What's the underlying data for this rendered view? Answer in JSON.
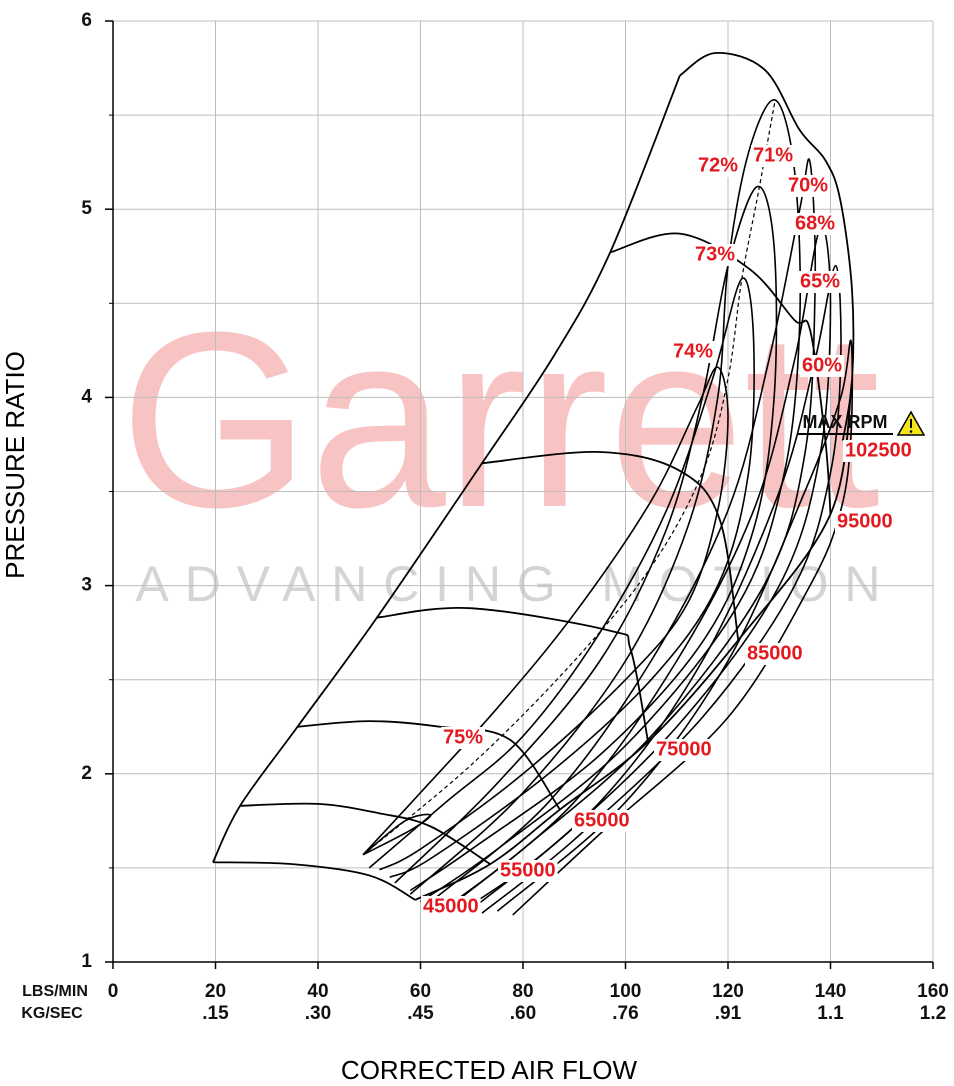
{
  "chart_data": {
    "type": "line",
    "x_label": "CORRECTED AIR FLOW",
    "y_label": "PRESSURE RATIO",
    "xlim": [
      0,
      160
    ],
    "ylim": [
      1,
      6
    ],
    "xticks": [
      0,
      20,
      40,
      60,
      80,
      100,
      120,
      140,
      160
    ],
    "x_row_labels": [
      "LBS/MIN",
      "KG/SEC"
    ],
    "kg_sec_ticks": [
      {
        "value": 20,
        "label": ".15"
      },
      {
        "value": 40,
        "label": ".30"
      },
      {
        "value": 60,
        "label": ".45"
      },
      {
        "value": 80,
        "label": ".60"
      },
      {
        "value": 100,
        "label": ".76"
      },
      {
        "value": 120,
        "label": ".91"
      },
      {
        "value": 140,
        "label": "1.1"
      },
      {
        "value": 160,
        "label": "1.2"
      }
    ],
    "yticks": [
      1,
      2,
      3,
      4,
      5,
      6
    ],
    "minor_yticks": [
      1.5,
      2.5,
      3.5,
      4.5,
      5.5
    ],
    "grid": true,
    "line_color": "#000000",
    "label_color": "#e3191f",
    "watermark": {
      "title": "Garrett",
      "tagline": "ADVANCING MOTION",
      "color": "#f7c3c3",
      "tagline_color": "#d4d4d4"
    },
    "max_rpm": {
      "label": "MAX RPM"
    },
    "series": [
      {
        "name": "45000",
        "x": [
          19.5,
          35,
          50,
          59
        ],
        "y": [
          1.53,
          1.52,
          1.46,
          1.33
        ]
      },
      {
        "name": "55000",
        "x": [
          24.8,
          40,
          52,
          62,
          73.6
        ],
        "y": [
          1.83,
          1.84,
          1.79,
          1.72,
          1.52
        ]
      },
      {
        "name": "65000",
        "x": [
          36,
          50,
          63.8,
          77.5,
          87.2
        ],
        "y": [
          2.25,
          2.28,
          2.25,
          2.18,
          1.81
        ]
      },
      {
        "name": "75000",
        "x": [
          51.5,
          69.7,
          97,
          101,
          104.4
        ],
        "y": [
          2.83,
          2.88,
          2.76,
          2.66,
          2.17
        ]
      },
      {
        "name": "85000",
        "x": [
          72,
          95,
          110.6,
          118.4,
          122
        ],
        "y": [
          3.65,
          3.71,
          3.61,
          3.35,
          2.71
        ]
      },
      {
        "name": "95000",
        "x": [
          97,
          110.6,
          124.3,
          133,
          136,
          139,
          140
        ],
        "y": [
          4.77,
          4.87,
          4.68,
          4.41,
          4.36,
          3.77,
          3.38
        ]
      },
      {
        "name": "102500",
        "x": [
          110.6,
          117.5,
          127.2,
          134,
          139,
          141.9,
          144.2,
          144.2,
          142.4
        ],
        "y": [
          5.71,
          5.83,
          5.74,
          5.42,
          5.26,
          5.05,
          4.57,
          4.09,
          3.77
        ]
      }
    ],
    "surge_line": {
      "x": [
        19.5,
        24.8,
        36,
        51.5,
        72,
        86,
        97,
        110.6
      ],
      "y": [
        1.53,
        1.83,
        2.25,
        2.83,
        3.65,
        4.22,
        4.77,
        5.71
      ]
    },
    "choke_line": {
      "x": [
        59,
        73.6,
        87.2,
        104.4,
        122,
        140,
        144.2
      ],
      "y": [
        1.33,
        1.52,
        1.81,
        2.17,
        2.71,
        3.38,
        4.09
      ]
    },
    "peak_efficiency_line": {
      "x": [
        48.8,
        70,
        90,
        105,
        115,
        120,
        122.7,
        126,
        129.2
      ],
      "y": [
        1.57,
        2.05,
        2.6,
        3.1,
        3.6,
        4.1,
        4.63,
        5.1,
        5.58
      ]
    },
    "efficiency_islands": [
      {
        "label": "75%",
        "x": [
          48.8,
          57,
          62,
          58,
          48.8
        ],
        "y": [
          1.57,
          1.75,
          1.78,
          1.7,
          1.57
        ]
      },
      {
        "label": "74%",
        "x": [
          48.8,
          60,
          75,
          90,
          105,
          114,
          118,
          120,
          118,
          112,
          100,
          80,
          60,
          52
        ],
        "y": [
          1.57,
          1.9,
          2.35,
          2.85,
          3.45,
          3.95,
          4.16,
          3.9,
          3.4,
          2.9,
          2.5,
          2.0,
          1.6,
          1.49
        ]
      },
      {
        "label": "73%",
        "x": [
          50,
          65,
          80,
          95,
          108,
          117,
          122.7,
          125,
          124,
          118,
          105,
          85,
          62,
          54
        ],
        "y": [
          1.5,
          1.85,
          2.2,
          2.75,
          3.4,
          4.1,
          4.63,
          4.3,
          3.6,
          3.0,
          2.5,
          2.0,
          1.55,
          1.45
        ]
      },
      {
        "label": "72%",
        "x": [
          55,
          75,
          95,
          108,
          115,
          120,
          125.7,
          129,
          129,
          125,
          115,
          95,
          70,
          58
        ],
        "y": [
          1.42,
          1.95,
          2.6,
          3.3,
          4.0,
          4.7,
          5.12,
          4.8,
          4.0,
          3.3,
          2.7,
          2.1,
          1.6,
          1.38
        ]
      },
      {
        "label": "71%",
        "x": [
          58,
          80,
          100,
          112,
          118,
          120,
          124,
          129.2,
          133,
          134,
          131,
          122,
          100,
          75,
          60
        ],
        "y": [
          1.36,
          1.9,
          2.6,
          3.3,
          4.0,
          4.7,
          5.3,
          5.58,
          5.2,
          4.4,
          3.6,
          2.9,
          2.15,
          1.6,
          1.32
        ]
      },
      {
        "label": "70%",
        "x": [
          62,
          85,
          105,
          120,
          128,
          134,
          136,
          137,
          135,
          127,
          105,
          80,
          65
        ],
        "y": [
          1.32,
          1.85,
          2.6,
          3.4,
          4.2,
          5.0,
          5.25,
          4.6,
          3.7,
          3.0,
          2.2,
          1.6,
          1.29
        ]
      },
      {
        "label": "68%",
        "x": [
          66,
          90,
          110,
          125,
          133,
          138,
          140,
          138,
          130,
          110,
          85,
          68
        ],
        "y": [
          1.3,
          1.85,
          2.6,
          3.4,
          4.2,
          4.9,
          4.5,
          3.7,
          3.0,
          2.25,
          1.6,
          1.27
        ]
      },
      {
        "label": "65%",
        "x": [
          70,
          95,
          115,
          130,
          137,
          141,
          142,
          140,
          133,
          115,
          90,
          72
        ],
        "y": [
          1.28,
          1.85,
          2.6,
          3.5,
          4.2,
          4.7,
          4.2,
          3.6,
          3.0,
          2.3,
          1.65,
          1.26
        ]
      },
      {
        "label": "60%",
        "x": [
          75,
          100,
          120,
          135,
          142,
          144,
          144,
          142,
          136,
          120,
          95,
          78
        ],
        "y": [
          1.27,
          1.85,
          2.6,
          3.5,
          4.0,
          4.3,
          3.8,
          3.4,
          3.0,
          2.3,
          1.68,
          1.25
        ]
      }
    ]
  }
}
